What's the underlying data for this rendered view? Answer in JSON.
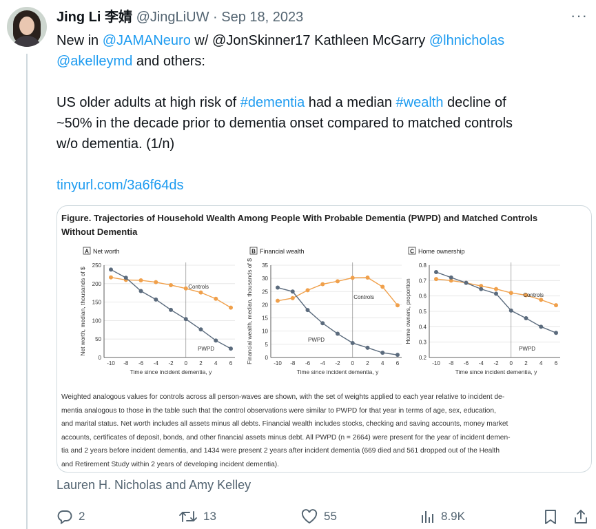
{
  "tweet": {
    "author_name": "Jing Li 李婧",
    "handle": "@JingLiUW",
    "separator": "·",
    "date": "Sep 18, 2023",
    "more_icon": "more-horizontal-icon",
    "text": {
      "l1_a": "New in ",
      "l1_mention1": "@JAMANeuro",
      "l1_b": " w/ @JonSkinner17 Kathleen McGarry ",
      "l1_mention2": "@lhnicholas",
      "l2_mention3": "@akelleymd",
      "l2_b": " and others:",
      "l3_a": "US older adults at high risk of ",
      "l3_tag1": "#dementia",
      "l3_b": " had a median ",
      "l3_tag2": "#wealth",
      "l3_c": " decline of",
      "l4": "~50% in the decade prior to dementia onset compared to matched controls",
      "l5": "w/o dementia. (1/n)",
      "link": "tinyurl.com/3a6f64ds"
    },
    "attribution": "Lauren H. Nicholas and Amy Kelley",
    "actions": {
      "reply_count": "2",
      "retweet_count": "13",
      "like_count": "55",
      "views_count": "8.9K"
    }
  },
  "figure": {
    "title_line1": "Figure.  Trajectories of Household Wealth Among People With Probable Dementia (PWPD) and Matched Controls",
    "title_line2": "Without Dementia",
    "caption": [
      "Weighted analogous values for controls across all person-waves are shown, with the set of weights applied to each year relative to incident de-",
      "mentia analogous to those in the table such that the control observations were similar to PWPD for that year in terms of age, sex, education,",
      "and marital status. Net worth includes all assets minus all debts. Financial wealth includes stocks, checking and saving accounts, money market",
      "accounts, certificates of deposit, bonds, and other financial assets minus debt. All PWPD (n = 2664) were present for the year of incident demen-",
      "tia and 2 years before incident dementia, and 1434 were present 2 years after incident dementia (669 died and 561 dropped out of the Health",
      "and Retirement Study within 2 years of developing incident dementia)."
    ]
  },
  "chart_data": [
    {
      "type": "line",
      "panel": "A",
      "title": "Net worth",
      "xlabel": "Time since incident dementia, y",
      "ylabel": "Net worth, median, thousands of $",
      "x": [
        -10,
        -8,
        -6,
        -4,
        -2,
        0,
        2,
        4,
        6
      ],
      "xlim": [
        -10,
        6
      ],
      "ylim": [
        0,
        250
      ],
      "yticks": [
        0,
        50,
        100,
        150,
        200,
        250
      ],
      "series": [
        {
          "name": "Controls",
          "color": "#f0a04b",
          "values": [
            217,
            210,
            209,
            204,
            196,
            187,
            176,
            159,
            135
          ]
        },
        {
          "name": "PWPD",
          "color": "#5b6b7d",
          "values": [
            238,
            216,
            180,
            157,
            129,
            104,
            76,
            46,
            24
          ]
        }
      ]
    },
    {
      "type": "line",
      "panel": "B",
      "title": "Financial wealth",
      "xlabel": "Time since incident dementia, y",
      "ylabel": "Financial wealth, median, thousands of $",
      "x": [
        -10,
        -8,
        -6,
        -4,
        -2,
        0,
        2,
        4,
        6
      ],
      "xlim": [
        -10,
        6
      ],
      "ylim": [
        0,
        35
      ],
      "yticks": [
        0,
        5,
        10,
        15,
        20,
        25,
        30,
        35
      ],
      "series": [
        {
          "name": "Controls",
          "color": "#f0a04b",
          "values": [
            21.5,
            22.5,
            25.5,
            27.8,
            28.9,
            30.2,
            30.3,
            26.8,
            19.8
          ]
        },
        {
          "name": "PWPD",
          "color": "#5b6b7d",
          "values": [
            26.5,
            25.0,
            18.0,
            13.0,
            9.0,
            5.5,
            3.7,
            1.8,
            1.0
          ]
        }
      ]
    },
    {
      "type": "line",
      "panel": "C",
      "title": "Home ownership",
      "xlabel": "Time since incident dementia, y",
      "ylabel": "Home owners, proportion",
      "x": [
        -10,
        -8,
        -6,
        -4,
        -2,
        0,
        2,
        4,
        6
      ],
      "xlim": [
        -10,
        6
      ],
      "ylim": [
        0.2,
        0.8
      ],
      "yticks": [
        0.2,
        0.3,
        0.4,
        0.5,
        0.6,
        0.7,
        0.8
      ],
      "series": [
        {
          "name": "Controls",
          "color": "#f0a04b",
          "values": [
            0.71,
            0.7,
            0.685,
            0.665,
            0.645,
            0.62,
            0.605,
            0.575,
            0.54
          ]
        },
        {
          "name": "PWPD",
          "color": "#5b6b7d",
          "values": [
            0.755,
            0.72,
            0.685,
            0.645,
            0.615,
            0.505,
            0.455,
            0.4,
            0.36
          ]
        }
      ]
    }
  ]
}
